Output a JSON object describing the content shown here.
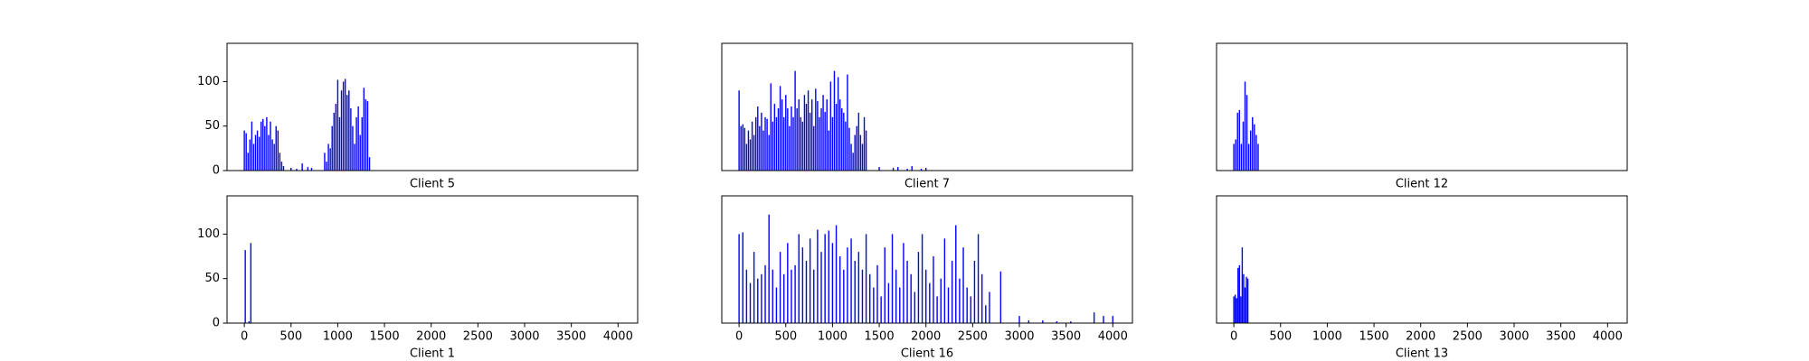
{
  "chart_data": [
    {
      "type": "bar",
      "xlabel": "Client 5",
      "color": "#0000ff",
      "xlim": [
        -185,
        4210
      ],
      "ylim": [
        0,
        143
      ],
      "yticks": [
        0,
        50,
        100
      ],
      "x": [
        0,
        20,
        40,
        60,
        80,
        100,
        120,
        140,
        160,
        180,
        200,
        220,
        240,
        260,
        280,
        300,
        320,
        340,
        360,
        380,
        400,
        420,
        500,
        560,
        620,
        680,
        720,
        860,
        880,
        900,
        920,
        940,
        960,
        980,
        1000,
        1020,
        1040,
        1060,
        1080,
        1100,
        1120,
        1140,
        1160,
        1180,
        1200,
        1220,
        1240,
        1260,
        1280,
        1300,
        1320,
        1340
      ],
      "values": [
        45,
        42,
        20,
        35,
        55,
        30,
        40,
        45,
        38,
        55,
        58,
        50,
        60,
        40,
        55,
        35,
        30,
        50,
        45,
        20,
        10,
        5,
        3,
        2,
        8,
        4,
        3,
        20,
        10,
        30,
        25,
        50,
        65,
        75,
        102,
        60,
        90,
        100,
        103,
        85,
        90,
        70,
        50,
        30,
        60,
        72,
        40,
        60,
        93,
        80,
        78,
        15
      ]
    },
    {
      "type": "bar",
      "xlabel": "Client 7",
      "color": "#0000ff",
      "xlim": [
        -185,
        4210
      ],
      "ylim": [
        0,
        143
      ],
      "x": [
        0,
        20,
        40,
        60,
        80,
        100,
        120,
        140,
        160,
        180,
        200,
        220,
        240,
        260,
        280,
        300,
        320,
        340,
        360,
        380,
        400,
        420,
        440,
        460,
        480,
        500,
        520,
        540,
        560,
        580,
        600,
        620,
        640,
        660,
        680,
        700,
        720,
        740,
        760,
        780,
        800,
        820,
        840,
        860,
        880,
        900,
        920,
        940,
        960,
        980,
        1000,
        1020,
        1040,
        1060,
        1080,
        1100,
        1120,
        1140,
        1160,
        1180,
        1200,
        1220,
        1240,
        1260,
        1280,
        1300,
        1320,
        1340,
        1360,
        1500,
        1650,
        1700,
        1800,
        1850,
        1950,
        2000
      ],
      "values": [
        90,
        50,
        52,
        48,
        30,
        45,
        35,
        55,
        40,
        60,
        72,
        50,
        65,
        45,
        60,
        58,
        40,
        98,
        55,
        75,
        60,
        70,
        95,
        80,
        60,
        85,
        70,
        50,
        72,
        60,
        112,
        70,
        80,
        60,
        55,
        85,
        75,
        90,
        65,
        80,
        50,
        92,
        78,
        60,
        70,
        85,
        66,
        80,
        45,
        100,
        60,
        112,
        75,
        105,
        80,
        70,
        65,
        55,
        108,
        48,
        30,
        20,
        40,
        50,
        65,
        40,
        30,
        60,
        45,
        4,
        3,
        4,
        2,
        5,
        2,
        3
      ]
    },
    {
      "type": "bar",
      "xlabel": "Client 12",
      "color": "#0000ff",
      "xlim": [
        -185,
        4210
      ],
      "ylim": [
        0,
        143
      ],
      "x": [
        0,
        20,
        40,
        60,
        80,
        100,
        120,
        140,
        160,
        180,
        200,
        220,
        240,
        260
      ],
      "values": [
        30,
        35,
        65,
        68,
        30,
        55,
        100,
        85,
        30,
        45,
        60,
        52,
        40,
        30
      ]
    },
    {
      "type": "bar",
      "xlabel": "Client 1",
      "color": "#0000ff",
      "xlim": [
        -185,
        4210
      ],
      "ylim": [
        0,
        143
      ],
      "yticks": [
        0,
        50,
        100
      ],
      "xticks": [
        0,
        500,
        1000,
        1500,
        2000,
        2500,
        3000,
        3500,
        4000
      ],
      "x": [
        10,
        50,
        70
      ],
      "values": [
        82,
        2,
        90
      ]
    },
    {
      "type": "bar",
      "xlabel": "Client 16",
      "color": "#0000ff",
      "xlim": [
        -185,
        4210
      ],
      "ylim": [
        0,
        143
      ],
      "xticks": [
        0,
        500,
        1000,
        1500,
        2000,
        2500,
        3000,
        3500,
        4000
      ],
      "x": [
        0,
        40,
        80,
        120,
        160,
        200,
        240,
        280,
        320,
        360,
        400,
        440,
        480,
        520,
        560,
        600,
        640,
        680,
        720,
        760,
        800,
        840,
        880,
        920,
        960,
        1000,
        1040,
        1080,
        1120,
        1160,
        1200,
        1240,
        1280,
        1320,
        1360,
        1400,
        1440,
        1480,
        1520,
        1560,
        1600,
        1640,
        1680,
        1720,
        1760,
        1800,
        1840,
        1880,
        1920,
        1960,
        2000,
        2040,
        2080,
        2120,
        2160,
        2200,
        2240,
        2280,
        2320,
        2360,
        2400,
        2440,
        2480,
        2520,
        2560,
        2600,
        2640,
        2680,
        2800,
        3000,
        3100,
        3250,
        3400,
        3550,
        3800,
        3900,
        4000
      ],
      "values": [
        100,
        102,
        60,
        45,
        80,
        50,
        55,
        65,
        122,
        60,
        40,
        80,
        55,
        90,
        60,
        65,
        100,
        85,
        70,
        95,
        60,
        105,
        80,
        100,
        104,
        90,
        110,
        75,
        60,
        85,
        95,
        70,
        80,
        60,
        100,
        55,
        40,
        65,
        30,
        85,
        45,
        100,
        60,
        40,
        90,
        70,
        55,
        35,
        80,
        100,
        60,
        45,
        75,
        30,
        50,
        95,
        40,
        70,
        110,
        50,
        85,
        40,
        30,
        70,
        100,
        55,
        20,
        35,
        58,
        8,
        3,
        3,
        2,
        2,
        12,
        8,
        8
      ]
    },
    {
      "type": "bar",
      "xlabel": "Client 13",
      "color": "#0000ff",
      "xlim": [
        -185,
        4210
      ],
      "ylim": [
        0,
        143
      ],
      "xticks": [
        0,
        500,
        1000,
        1500,
        2000,
        2500,
        3000,
        3500,
        4000
      ],
      "x": [
        0,
        15,
        30,
        45,
        60,
        75,
        90,
        105,
        120,
        135,
        150
      ],
      "values": [
        30,
        32,
        28,
        62,
        65,
        30,
        85,
        55,
        40,
        52,
        50
      ]
    }
  ]
}
